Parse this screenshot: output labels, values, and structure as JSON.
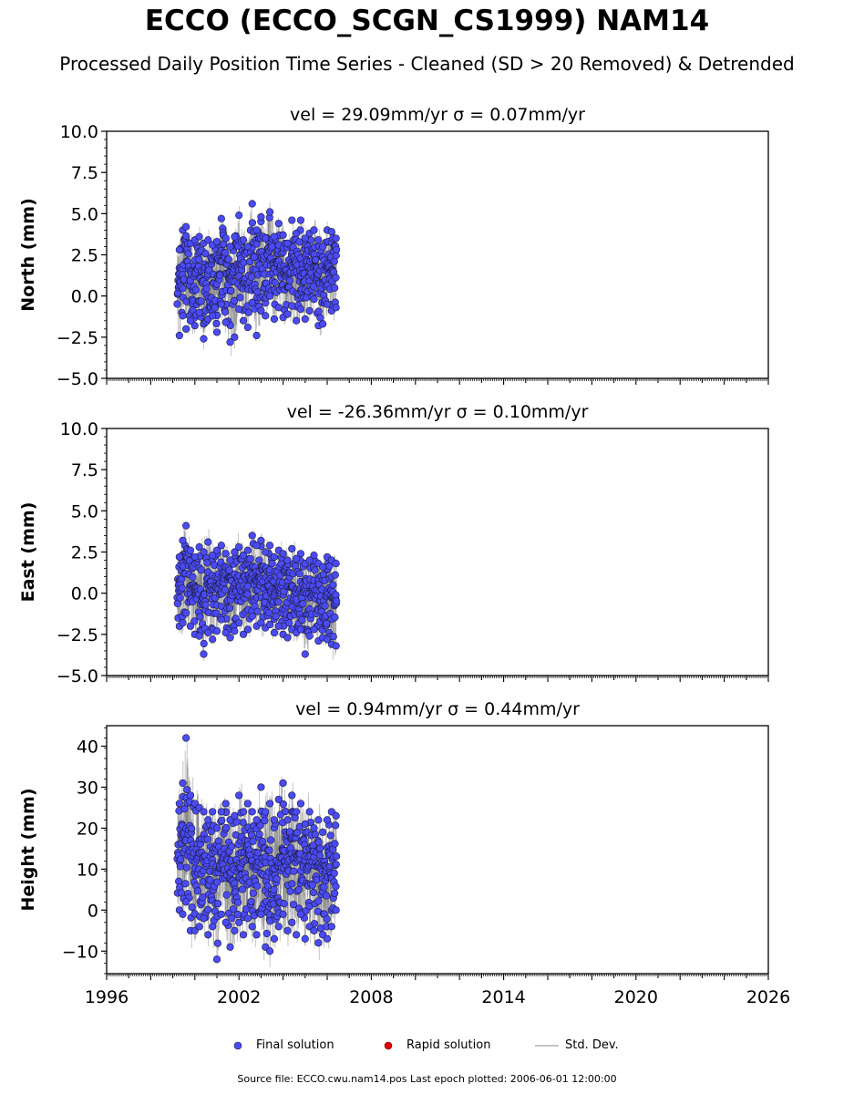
{
  "title": "ECCO (ECCO_SCGN_CS1999) NAM14",
  "subtitle": "Processed Daily Position Time Series - Cleaned (SD > 20 Removed) & Detrended",
  "legend": {
    "final": "Final solution",
    "rapid": "Rapid solution",
    "std": "Std. Dev."
  },
  "footer": "Source file: ECCO.cwu.nam14.pos  Last epoch plotted: 2006-06-01 12:00:00",
  "colors": {
    "final": "#4b4bf5",
    "final_edge": "#1a1a3a",
    "rapid": "#e00000",
    "std": "#b0b0b0"
  },
  "chart_data": [
    {
      "type": "scatter",
      "panel": "north",
      "title": "vel = 29.09mm/yr   σ = 0.07mm/yr",
      "ylabel": "North (mm)",
      "xlim": [
        1996,
        2026
      ],
      "ylim": [
        -5,
        10
      ],
      "yticks": [
        -5.0,
        -2.5,
        0.0,
        2.5,
        5.0,
        7.5,
        10.0
      ],
      "ytick_labels": [
        "−5.0",
        "−2.5",
        "0.0",
        "2.5",
        "5.0",
        "7.5",
        "10.0"
      ],
      "series": [
        {
          "values_description_note": null,
          "x": [
            1999.3,
            1999.45,
            1999.6,
            1999.8,
            2000.0,
            2000.2,
            2000.4,
            2000.6,
            2000.8,
            2001.0,
            2001.2,
            2001.4,
            2001.6,
            2001.8,
            2002.0,
            2002.2,
            2002.4,
            2002.6,
            2002.8,
            2003.0,
            2003.2,
            2003.4,
            2003.6,
            2003.8,
            2004.0,
            2004.2,
            2004.4,
            2004.6,
            2004.8,
            2005.0,
            2005.2,
            2005.4,
            2005.6,
            2005.8,
            2006.0,
            2006.2,
            2006.4
          ],
          "y": [
            0.5,
            1.8,
            3.5,
            0.8,
            1.2,
            2.0,
            0.3,
            1.5,
            1.0,
            0.6,
            2.2,
            1.4,
            0.9,
            1.8,
            2.5,
            1.2,
            0.8,
            2.6,
            1.9,
            2.4,
            1.1,
            3.0,
            1.7,
            2.2,
            1.5,
            0.9,
            2.8,
            1.6,
            2.3,
            1.2,
            1.8,
            2.6,
            1.1,
            0.7,
            2.0,
            1.5,
            1.9
          ],
          "y_low": [
            -2.4,
            -1.2,
            -2.0,
            -1.5,
            -1.8,
            -1.0,
            -2.6,
            -1.4,
            -1.2,
            -2.2,
            -0.5,
            -1.6,
            -2.8,
            -2.5,
            -0.8,
            -1.5,
            -1.9,
            -0.4,
            -2.4,
            -0.9,
            -1.2,
            0.0,
            -1.4,
            -0.7,
            -1.3,
            -1.1,
            -0.6,
            -1.5,
            -0.8,
            -1.4,
            -0.9,
            -0.2,
            -1.8,
            -1.7,
            -0.5,
            -0.9,
            -0.7
          ],
          "y_high": [
            2.8,
            4.0,
            4.2,
            3.2,
            3.4,
            3.6,
            3.2,
            3.4,
            3.1,
            3.3,
            4.7,
            3.5,
            3.0,
            3.6,
            4.9,
            3.4,
            3.0,
            5.6,
            4.0,
            4.8,
            3.5,
            5.1,
            3.6,
            4.4,
            3.7,
            3.2,
            4.6,
            3.8,
            4.6,
            3.5,
            3.8,
            4.0,
            3.4,
            3.0,
            4.0,
            3.9,
            3.5
          ]
        }
      ]
    },
    {
      "type": "scatter",
      "panel": "east",
      "title": "vel = -26.36mm/yr   σ = 0.10mm/yr",
      "ylabel": "East (mm)",
      "xlim": [
        1996,
        2026
      ],
      "ylim": [
        -5,
        10
      ],
      "yticks": [
        -5.0,
        -2.5,
        0.0,
        2.5,
        5.0,
        7.5,
        10.0
      ],
      "ytick_labels": [
        "−5.0",
        "−2.5",
        "0.0",
        "2.5",
        "5.0",
        "7.5",
        "10.0"
      ],
      "series": [
        {
          "x": [
            1999.3,
            1999.45,
            1999.6,
            1999.8,
            2000.0,
            2000.2,
            2000.4,
            2000.6,
            2000.8,
            2001.0,
            2001.2,
            2001.4,
            2001.6,
            2001.8,
            2002.0,
            2002.2,
            2002.4,
            2002.6,
            2002.8,
            2003.0,
            2003.2,
            2003.4,
            2003.6,
            2003.8,
            2004.0,
            2004.2,
            2004.4,
            2004.6,
            2004.8,
            2005.0,
            2005.2,
            2005.4,
            2005.6,
            2005.8,
            2006.0,
            2006.2,
            2006.4
          ],
          "y": [
            0.2,
            0.8,
            1.8,
            0.5,
            0.2,
            0.0,
            -0.4,
            0.5,
            -0.2,
            0.4,
            0.8,
            0.1,
            -0.5,
            0.3,
            0.6,
            0.0,
            0.4,
            1.2,
            0.7,
            1.0,
            0.2,
            0.6,
            -0.1,
            0.4,
            0.2,
            -0.3,
            0.5,
            0.0,
            0.3,
            -0.4,
            -0.2,
            0.4,
            -0.3,
            -0.6,
            0.0,
            -0.2,
            -0.5
          ],
          "y_low": [
            -2.0,
            -1.8,
            -1.2,
            -2.0,
            -2.5,
            -2.6,
            -3.7,
            -2.4,
            -2.8,
            -2.3,
            -1.6,
            -2.4,
            -2.7,
            -2.3,
            -1.8,
            -2.5,
            -2.2,
            -1.4,
            -2.0,
            -1.8,
            -2.1,
            -1.9,
            -2.4,
            -2.0,
            -2.5,
            -2.7,
            -2.2,
            -2.4,
            -2.2,
            -3.7,
            -2.6,
            -2.2,
            -2.9,
            -2.7,
            -2.8,
            -3.1,
            -3.2
          ],
          "y_high": [
            2.2,
            3.2,
            4.1,
            2.6,
            2.2,
            2.8,
            2.5,
            3.1,
            2.3,
            2.6,
            2.9,
            2.4,
            2.0,
            2.5,
            2.8,
            2.3,
            2.6,
            3.5,
            2.9,
            3.2,
            2.5,
            2.9,
            2.2,
            2.6,
            2.4,
            2.0,
            2.7,
            2.1,
            2.4,
            1.8,
            2.0,
            2.3,
            1.8,
            1.6,
            2.2,
            2.0,
            1.8
          ]
        }
      ]
    },
    {
      "type": "scatter",
      "panel": "height",
      "title": "vel = 0.94mm/yr   σ = 0.44mm/yr",
      "ylabel": "Height (mm)",
      "xlim": [
        1996,
        2026
      ],
      "ylim": [
        -15.5,
        45
      ],
      "yticks": [
        -10,
        0,
        10,
        20,
        30,
        40
      ],
      "ytick_labels": [
        "−10",
        "0",
        "10",
        "20",
        "30",
        "40"
      ],
      "xticks": [
        1996,
        2002,
        2008,
        2014,
        2020,
        2026
      ],
      "xtick_labels": [
        "1996",
        "2002",
        "2008",
        "2014",
        "2020",
        "2026"
      ],
      "series": [
        {
          "x": [
            1999.3,
            1999.45,
            1999.6,
            1999.8,
            2000.0,
            2000.2,
            2000.4,
            2000.6,
            2000.8,
            2001.0,
            2001.2,
            2001.4,
            2001.6,
            2001.8,
            2002.0,
            2002.2,
            2002.4,
            2002.6,
            2002.8,
            2003.0,
            2003.2,
            2003.4,
            2003.6,
            2003.8,
            2004.0,
            2004.2,
            2004.4,
            2004.6,
            2004.8,
            2005.0,
            2005.2,
            2005.4,
            2005.6,
            2005.8,
            2006.0,
            2006.2,
            2006.4
          ],
          "y": [
            14,
            18,
            20,
            15,
            12,
            10,
            13,
            9,
            11,
            8,
            12,
            14,
            10,
            9,
            13,
            11,
            15,
            12,
            10,
            14,
            11,
            13,
            9,
            12,
            15,
            10,
            13,
            11,
            14,
            9,
            12,
            10,
            11,
            8,
            10,
            12,
            13
          ],
          "y_low": [
            0,
            -1,
            2,
            -5,
            -5,
            -4,
            -2,
            -6,
            -4,
            -12,
            -1,
            -3,
            -9,
            -5,
            -3,
            -6,
            -2,
            -4,
            -6,
            -1,
            -9,
            -10,
            -7,
            -4,
            -1,
            -5,
            -3,
            -6,
            -1,
            -7,
            -4,
            -5,
            -8,
            -6,
            -7,
            -4,
            0
          ],
          "y_high": [
            26,
            31,
            42,
            28,
            26,
            25,
            24,
            22,
            24,
            20,
            24,
            26,
            22,
            23,
            28,
            24,
            26,
            24,
            22,
            30,
            24,
            26,
            22,
            27,
            31,
            22,
            28,
            24,
            26,
            21,
            24,
            20,
            22,
            19,
            22,
            24,
            23
          ]
        }
      ]
    }
  ]
}
